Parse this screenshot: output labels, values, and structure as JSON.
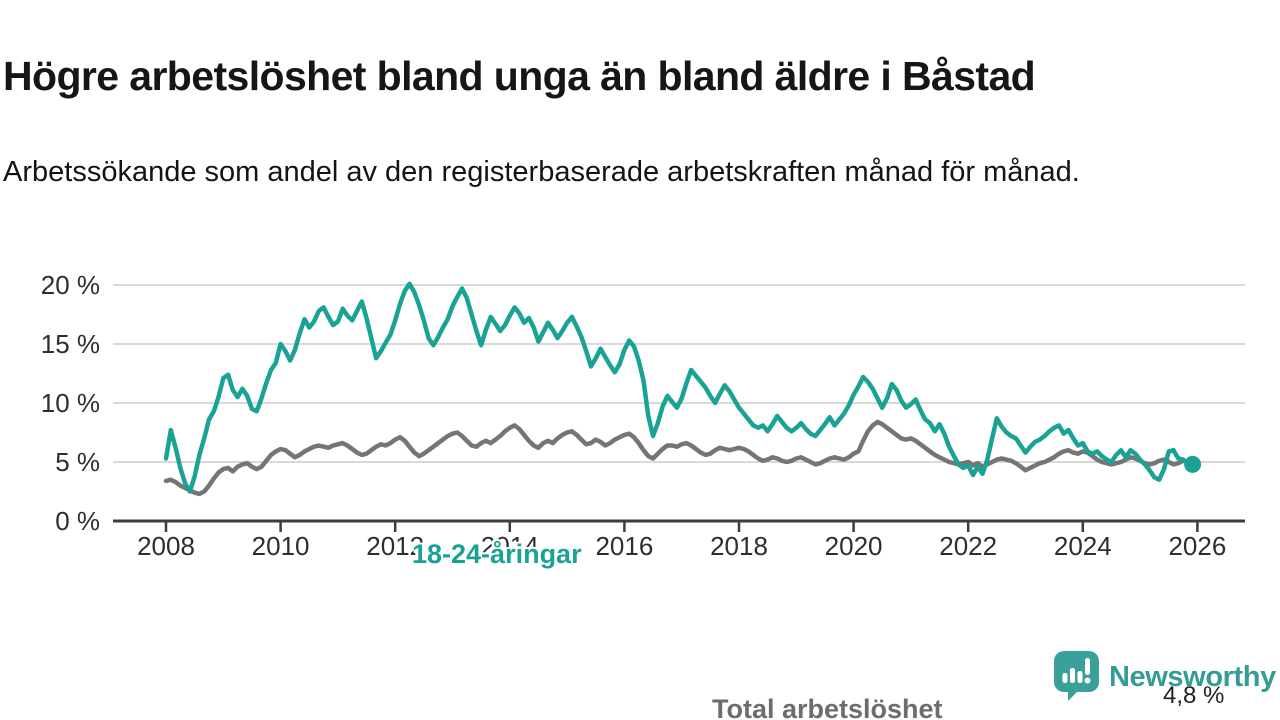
{
  "header": {
    "title": "Högre arbetslöshet bland unga än bland äldre i Båstad",
    "subtitle": "Arbetssökande som andel av den registerbaserade arbetskraften månad för månad."
  },
  "chart_data": {
    "type": "line",
    "title": "Högre arbetslöshet bland unga än bland äldre i Båstad",
    "subtitle": "Arbetssökande som andel av den registerbaserade arbetskraften månad för månad.",
    "unit": "%",
    "x_start": "2008-01",
    "x_end": "2025-12",
    "x_resolution": "monthly",
    "xticks": [
      2008,
      2010,
      2012,
      2014,
      2016,
      2018,
      2020,
      2022,
      2024,
      2026
    ],
    "ylim": [
      0,
      21
    ],
    "yticks": {
      "values": [
        0,
        5,
        10,
        15,
        20
      ],
      "labels": [
        "0 %",
        "5 %",
        "10 %",
        "15 %",
        "20 %"
      ]
    },
    "grid": "horizontal",
    "legend_position": "inline-labels",
    "colors": {
      "young": "#1aa394",
      "total": "#757575",
      "gridline": "#d9d9d9",
      "axis": "#3c3c3c"
    },
    "series": [
      {
        "name": "Total arbetslöshet",
        "color": "#757575",
        "values": [
          3.4,
          3.5,
          3.3,
          3.0,
          2.8,
          2.6,
          2.4,
          2.3,
          2.5,
          3.0,
          3.6,
          4.1,
          4.4,
          4.5,
          4.2,
          4.6,
          4.8,
          4.9,
          4.6,
          4.4,
          4.6,
          5.1,
          5.6,
          5.9,
          6.1,
          6.0,
          5.7,
          5.4,
          5.6,
          5.9,
          6.1,
          6.3,
          6.4,
          6.3,
          6.2,
          6.4,
          6.5,
          6.6,
          6.4,
          6.1,
          5.8,
          5.6,
          5.7,
          6.0,
          6.3,
          6.5,
          6.4,
          6.6,
          6.9,
          7.1,
          6.8,
          6.3,
          5.8,
          5.5,
          5.7,
          6.0,
          6.3,
          6.6,
          6.9,
          7.2,
          7.4,
          7.5,
          7.2,
          6.8,
          6.4,
          6.3,
          6.6,
          6.8,
          6.6,
          6.9,
          7.2,
          7.6,
          7.9,
          8.1,
          7.8,
          7.3,
          6.8,
          6.4,
          6.2,
          6.6,
          6.8,
          6.6,
          7.0,
          7.3,
          7.5,
          7.6,
          7.3,
          6.9,
          6.5,
          6.6,
          6.9,
          6.7,
          6.4,
          6.6,
          6.9,
          7.1,
          7.3,
          7.4,
          7.1,
          6.6,
          6.0,
          5.5,
          5.3,
          5.7,
          6.1,
          6.4,
          6.4,
          6.3,
          6.5,
          6.6,
          6.4,
          6.1,
          5.8,
          5.6,
          5.7,
          6.0,
          6.2,
          6.1,
          6.0,
          6.1,
          6.2,
          6.1,
          5.9,
          5.6,
          5.3,
          5.1,
          5.2,
          5.4,
          5.3,
          5.1,
          5.0,
          5.1,
          5.3,
          5.4,
          5.2,
          5.0,
          4.8,
          4.9,
          5.1,
          5.3,
          5.4,
          5.3,
          5.2,
          5.4,
          5.7,
          5.9,
          6.8,
          7.6,
          8.1,
          8.4,
          8.2,
          7.9,
          7.6,
          7.3,
          7.0,
          6.9,
          7.0,
          6.8,
          6.5,
          6.2,
          5.9,
          5.6,
          5.4,
          5.2,
          5.0,
          4.9,
          4.8,
          4.9,
          5.0,
          4.7,
          4.9,
          4.6,
          4.8,
          5.0,
          5.2,
          5.3,
          5.2,
          5.1,
          4.9,
          4.6,
          4.3,
          4.5,
          4.7,
          4.9,
          5.0,
          5.2,
          5.4,
          5.7,
          5.9,
          6.0,
          5.8,
          5.7,
          5.9,
          5.8,
          5.5,
          5.2,
          5.0,
          4.9,
          4.8,
          4.9,
          5.0,
          5.2,
          5.4,
          5.3,
          5.1,
          4.9,
          4.8,
          4.9,
          5.1,
          5.2,
          5.0,
          4.8,
          4.9,
          5.1,
          5.0,
          4.9
        ]
      },
      {
        "name": "18-24-åringar",
        "color": "#1aa394",
        "values": [
          5.3,
          7.7,
          6.2,
          4.5,
          3.2,
          2.5,
          3.8,
          5.6,
          7.0,
          8.6,
          9.3,
          10.5,
          12.1,
          12.4,
          11.1,
          10.5,
          11.2,
          10.6,
          9.5,
          9.3,
          10.4,
          11.7,
          12.8,
          13.4,
          15.0,
          14.4,
          13.6,
          14.5,
          15.9,
          17.1,
          16.4,
          16.9,
          17.8,
          18.1,
          17.3,
          16.6,
          16.9,
          18.0,
          17.4,
          17.0,
          17.8,
          18.6,
          17.2,
          15.5,
          13.8,
          14.4,
          15.1,
          15.8,
          17.0,
          18.4,
          19.5,
          20.1,
          19.4,
          18.3,
          17.0,
          15.5,
          14.9,
          15.6,
          16.4,
          17.1,
          18.2,
          19.0,
          19.7,
          18.9,
          17.5,
          16.1,
          14.9,
          16.2,
          17.3,
          16.7,
          16.1,
          16.6,
          17.4,
          18.1,
          17.6,
          16.8,
          17.2,
          16.4,
          15.2,
          16.0,
          16.8,
          16.2,
          15.5,
          16.1,
          16.8,
          17.3,
          16.5,
          15.6,
          14.4,
          13.1,
          13.8,
          14.6,
          13.9,
          13.2,
          12.6,
          13.3,
          14.5,
          15.3,
          14.8,
          13.6,
          11.9,
          8.9,
          7.2,
          8.3,
          9.7,
          10.6,
          10.1,
          9.6,
          10.4,
          11.7,
          12.8,
          12.3,
          11.8,
          11.3,
          10.6,
          10.0,
          10.8,
          11.5,
          11.0,
          10.3,
          9.6,
          9.1,
          8.6,
          8.1,
          7.9,
          8.1,
          7.6,
          8.2,
          8.9,
          8.4,
          7.9,
          7.6,
          7.9,
          8.3,
          7.8,
          7.4,
          7.2,
          7.7,
          8.2,
          8.8,
          8.1,
          8.6,
          9.1,
          9.8,
          10.7,
          11.4,
          12.2,
          11.8,
          11.2,
          10.4,
          9.6,
          10.4,
          11.6,
          11.1,
          10.2,
          9.6,
          9.9,
          10.3,
          9.4,
          8.6,
          8.3,
          7.6,
          8.2,
          7.4,
          6.3,
          5.5,
          4.8,
          4.5,
          4.7,
          3.9,
          4.6,
          4.0,
          5.2,
          7.0,
          8.7,
          8.0,
          7.5,
          7.2,
          7.0,
          6.4,
          5.8,
          6.3,
          6.7,
          6.9,
          7.2,
          7.6,
          7.9,
          8.1,
          7.4,
          7.7,
          7.0,
          6.4,
          6.6,
          5.9,
          5.7,
          5.9,
          5.5,
          5.2,
          5.0,
          5.6,
          6.0,
          5.4,
          6.0,
          5.7,
          5.2,
          4.8,
          4.3,
          3.7,
          3.5,
          4.4,
          5.9,
          6.0,
          5.3,
          5.2,
          4.9,
          4.8
        ]
      }
    ],
    "annotation": {
      "text": "4,8 %",
      "series": "18-24-åringar",
      "value": 4.8,
      "x": "2025-12"
    }
  },
  "footer": {
    "brand": "Newsworthy"
  }
}
